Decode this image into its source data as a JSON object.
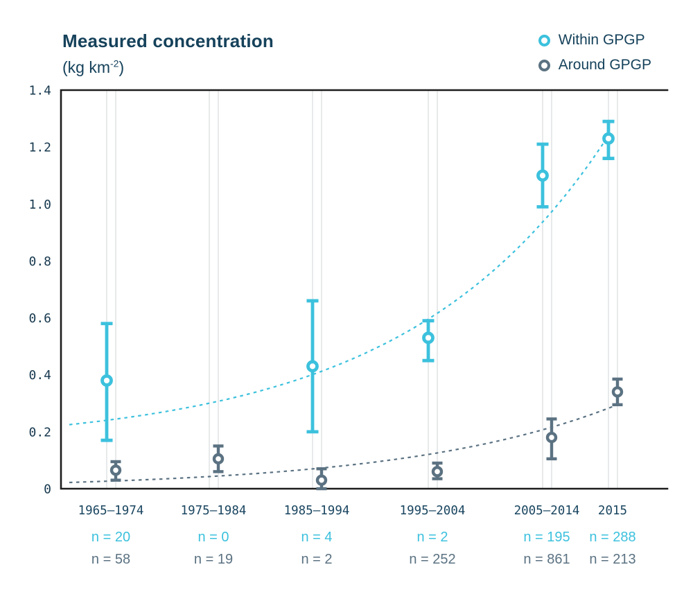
{
  "header": {
    "title": "Measured concentration",
    "unit_open": "(kg km",
    "unit_exponent": "-2",
    "unit_close": ")"
  },
  "legend": {
    "items": [
      {
        "label": "Within GPGP",
        "color": "#3CC1DD"
      },
      {
        "label": "Around GPGP",
        "color": "#5B7282"
      }
    ]
  },
  "chart_data": {
    "type": "scatter",
    "title": "Measured concentration",
    "ylabel": "kg km⁻²",
    "xlabel": "",
    "grid": "vertical-double",
    "legend_position": "top-right",
    "categories": [
      "1965–1974",
      "1975–1984",
      "1985–1994",
      "1995–2004",
      "2005–2014",
      "2015"
    ],
    "ylim": [
      0,
      1.4
    ],
    "yticks": [
      0,
      0.2,
      0.4,
      0.6,
      0.8,
      1.0,
      1.2,
      1.4
    ],
    "ytick_labels": [
      "0",
      "0.2",
      "0.4",
      "0.6",
      "0.8",
      "1.0",
      "1.2",
      "1.4"
    ],
    "series": [
      {
        "name": "Within GPGP",
        "color": "#3CC1DD",
        "marker": "open-circle",
        "trend": "exponential-dashed",
        "means": [
          0.38,
          null,
          0.43,
          0.53,
          1.1,
          1.23
        ],
        "err_low": [
          0.17,
          null,
          0.2,
          0.45,
          0.99,
          1.16
        ],
        "err_high": [
          0.58,
          null,
          0.66,
          0.59,
          1.21,
          1.29
        ],
        "n": [
          20,
          0,
          4,
          2,
          195,
          288
        ]
      },
      {
        "name": "Around GPGP",
        "color": "#5B7282",
        "marker": "open-circle",
        "trend": "exponential-dashed",
        "means": [
          0.065,
          0.105,
          0.03,
          0.06,
          0.18,
          0.34
        ],
        "err_low": [
          0.03,
          0.06,
          0.0,
          0.035,
          0.105,
          0.295
        ],
        "err_high": [
          0.095,
          0.15,
          0.07,
          0.09,
          0.245,
          0.385
        ],
        "n": [
          58,
          19,
          2,
          252,
          861,
          213
        ]
      }
    ]
  },
  "n_rows": {
    "within": [
      "n = 20",
      "n = 0",
      "n = 4",
      "n = 2",
      "n = 195",
      "n = 288"
    ],
    "around": [
      "n = 58",
      "n = 19",
      "n = 2",
      "n = 252",
      "n = 861",
      "n = 213"
    ]
  }
}
